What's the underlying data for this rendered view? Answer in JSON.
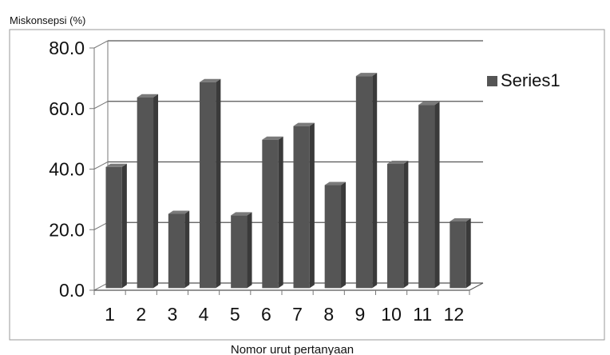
{
  "chart_data": {
    "type": "bar",
    "title": "",
    "ylabel": "Miskonsepsi (%)",
    "xlabel": "Nomor urut pertanyaan",
    "categories": [
      "1",
      "2",
      "3",
      "4",
      "5",
      "6",
      "7",
      "8",
      "9",
      "10",
      "11",
      "12"
    ],
    "series": [
      {
        "name": "Series1",
        "values": [
          40,
          63,
          24.5,
          68,
          24,
          49,
          53.5,
          34,
          70,
          41,
          60.5,
          22
        ],
        "color": "#555555"
      }
    ],
    "ylim": [
      0,
      80
    ],
    "yticks": [
      0,
      20,
      40,
      60,
      80
    ],
    "ytick_labels": [
      "0.0",
      "20.0",
      "40.0",
      "60.0",
      "80.0"
    ],
    "grid": true,
    "style": "3d-bar",
    "legend_position": "right"
  }
}
